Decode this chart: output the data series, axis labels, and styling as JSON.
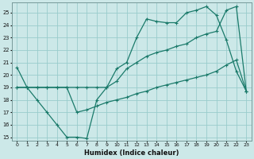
{
  "xlabel": "Humidex (Indice chaleur)",
  "bg_color": "#cce8e8",
  "grid_color": "#99cccc",
  "line_color": "#1a7a6a",
  "xlim": [
    -0.5,
    23.5
  ],
  "ylim": [
    14.7,
    25.8
  ],
  "yticks": [
    15,
    16,
    17,
    18,
    19,
    20,
    21,
    22,
    23,
    24,
    25
  ],
  "xticks": [
    0,
    1,
    2,
    3,
    4,
    5,
    6,
    7,
    8,
    9,
    10,
    11,
    12,
    13,
    14,
    15,
    16,
    17,
    18,
    19,
    20,
    21,
    22,
    23
  ],
  "line1_x": [
    0,
    1,
    2,
    3,
    4,
    5,
    6,
    7,
    8,
    9,
    10,
    11,
    12,
    13,
    14,
    15,
    16,
    17,
    18,
    19,
    20,
    21,
    22,
    23
  ],
  "line1_y": [
    20.6,
    19.0,
    18.0,
    17.0,
    16.0,
    15.0,
    15.0,
    14.9,
    18.0,
    19.0,
    20.5,
    21.0,
    23.0,
    24.5,
    24.3,
    24.2,
    24.2,
    25.0,
    25.2,
    25.5,
    24.8,
    22.8,
    20.3,
    18.7
  ],
  "line2_x": [
    0,
    1,
    2,
    3,
    4,
    5,
    6,
    7,
    8,
    9,
    10,
    11,
    12,
    13,
    14,
    15,
    16,
    17,
    18,
    19,
    20,
    21,
    22,
    23
  ],
  "line2_y": [
    19.0,
    19.0,
    19.0,
    19.0,
    19.0,
    19.0,
    19.0,
    19.0,
    19.0,
    19.0,
    19.5,
    20.5,
    21.0,
    21.5,
    21.8,
    22.0,
    22.3,
    22.5,
    23.0,
    23.3,
    23.5,
    25.2,
    25.5,
    18.7
  ],
  "line3_x": [
    0,
    1,
    2,
    3,
    4,
    5,
    6,
    7,
    8,
    9,
    10,
    11,
    12,
    13,
    14,
    15,
    16,
    17,
    18,
    19,
    20,
    21,
    22,
    23
  ],
  "line3_y": [
    19.0,
    19.0,
    19.0,
    19.0,
    19.0,
    19.0,
    17.0,
    17.2,
    17.5,
    17.8,
    18.0,
    18.2,
    18.5,
    18.7,
    19.0,
    19.2,
    19.4,
    19.6,
    19.8,
    20.0,
    20.3,
    20.8,
    21.2,
    18.7
  ]
}
